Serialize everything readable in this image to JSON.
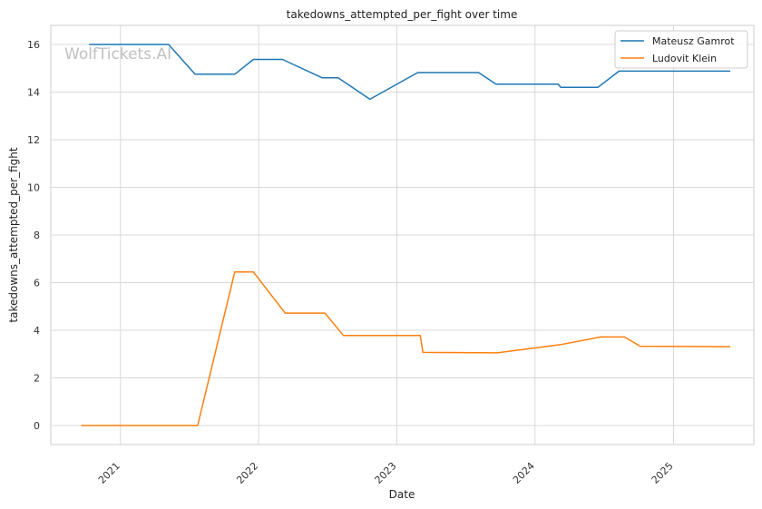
{
  "watermark": "WolfTickets.AI",
  "chart_data": {
    "type": "line",
    "title": "takedowns_attempted_per_fight over time",
    "xlabel": "Date",
    "ylabel": "takedowns_attempted_per_fight",
    "x_ticks": [
      "2021",
      "2022",
      "2023",
      "2024",
      "2025"
    ],
    "y_ticks": [
      "0",
      "2",
      "4",
      "6",
      "8",
      "10",
      "12",
      "14",
      "16"
    ],
    "ylim": [
      -0.8,
      16.8
    ],
    "xlim": [
      "2020-07-01",
      "2025-08-01"
    ],
    "grid": true,
    "legend_position": "top-right",
    "series": [
      {
        "name": "Mateusz Gamrot",
        "color": "#1f77b4",
        "points": [
          [
            "2020-10-10",
            16.0
          ],
          [
            "2021-05-08",
            16.0
          ],
          [
            "2021-07-17",
            14.75
          ],
          [
            "2021-10-30",
            14.75
          ],
          [
            "2021-12-18",
            15.37
          ],
          [
            "2022-03-05",
            15.37
          ],
          [
            "2022-06-18",
            14.6
          ],
          [
            "2022-07-30",
            14.6
          ],
          [
            "2022-10-22",
            13.7
          ],
          [
            "2023-02-25",
            14.82
          ],
          [
            "2023-08-05",
            14.82
          ],
          [
            "2023-09-20",
            14.33
          ],
          [
            "2024-03-02",
            14.33
          ],
          [
            "2024-03-09",
            14.2
          ],
          [
            "2024-06-15",
            14.2
          ],
          [
            "2024-08-10",
            14.88
          ],
          [
            "2025-05-31",
            14.88
          ]
        ]
      },
      {
        "name": "Ludovit Klein",
        "color": "#ff7f0e",
        "points": [
          [
            "2020-09-19",
            0.0
          ],
          [
            "2021-07-24",
            0.0
          ],
          [
            "2021-10-30",
            6.45
          ],
          [
            "2021-12-18",
            6.45
          ],
          [
            "2022-03-12",
            4.72
          ],
          [
            "2022-06-25",
            4.72
          ],
          [
            "2022-08-13",
            3.78
          ],
          [
            "2023-03-04",
            3.78
          ],
          [
            "2023-03-11",
            3.07
          ],
          [
            "2023-09-23",
            3.05
          ],
          [
            "2024-03-09",
            3.4
          ],
          [
            "2024-06-22",
            3.72
          ],
          [
            "2024-08-24",
            3.72
          ],
          [
            "2024-10-05",
            3.33
          ],
          [
            "2025-05-31",
            3.31
          ]
        ]
      }
    ]
  }
}
